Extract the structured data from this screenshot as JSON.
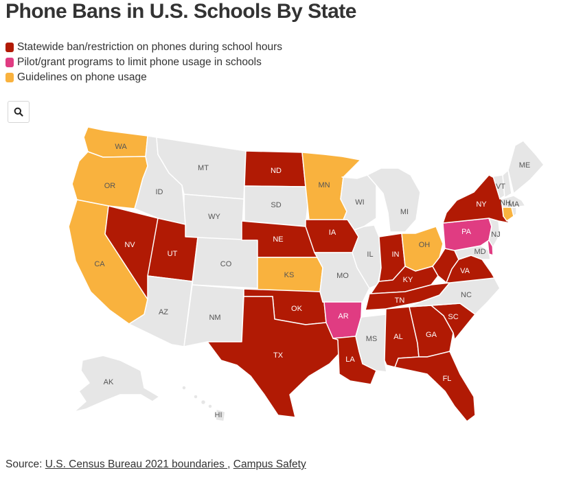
{
  "title": "Phone Bans in U.S. Schools By State",
  "legend": [
    {
      "label": "Statewide ban/restriction on phones during school hours",
      "color": "#b11a04"
    },
    {
      "label": "Pilot/grant programs to limit phone usage in schools",
      "color": "#e03c82"
    },
    {
      "label": "Guidelines on phone usage",
      "color": "#f9b23e"
    }
  ],
  "colors": {
    "ban": "#b11a04",
    "pilot": "#e03c82",
    "guidelines": "#f9b23e",
    "none": "#e6e6e6"
  },
  "search_icon": "search-icon",
  "states": {
    "WA": "guidelines",
    "OR": "guidelines",
    "CA": "guidelines",
    "NV": "ban",
    "ID": "none",
    "MT": "none",
    "WY": "none",
    "UT": "ban",
    "AZ": "none",
    "CO": "none",
    "NM": "none",
    "ND": "ban",
    "SD": "none",
    "NE": "ban",
    "KS": "guidelines",
    "OK": "ban",
    "TX": "ban",
    "MN": "guidelines",
    "IA": "ban",
    "MO": "none",
    "AR": "pilot",
    "LA": "ban",
    "WI": "none",
    "IL": "none",
    "MS": "none",
    "MI": "none",
    "IN": "ban",
    "KY": "ban",
    "TN": "ban",
    "AL": "ban",
    "GA": "ban",
    "FL": "ban",
    "SC": "ban",
    "NC": "none",
    "OH": "guidelines",
    "WV": "ban",
    "VA": "ban",
    "PA": "pilot",
    "NY": "ban",
    "VT": "none",
    "NH": "none",
    "ME": "none",
    "MA": "none",
    "CT": "guidelines",
    "RI": "none",
    "NJ": "none",
    "DE": "pilot",
    "MD": "none",
    "AK": "none",
    "HI": "none"
  },
  "source": {
    "prefix": "Source: ",
    "link1": "U.S. Census Bureau 2021 boundaries ",
    "sep": ", ",
    "link2": "Campus Safety"
  }
}
